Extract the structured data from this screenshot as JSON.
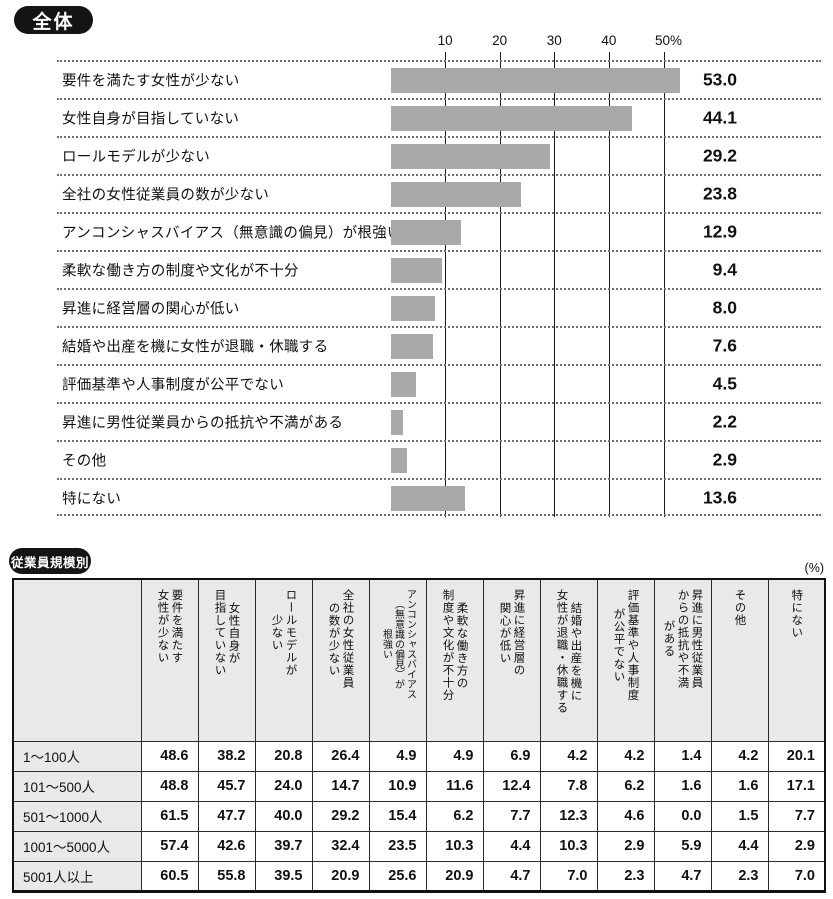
{
  "sections": {
    "overall_title": "全体",
    "by_size_title": "従業員規模別",
    "percent_note": "(%)"
  },
  "colors": {
    "bar": "#a9a9a9",
    "pill_bg": "#141414",
    "pill_text": "#ffffff",
    "table_header_bg": "#e9e9e9",
    "grid": "#1a1a1a"
  },
  "chart_data": [
    {
      "type": "bar",
      "orientation": "horizontal",
      "title": "全体",
      "unit": "%",
      "xlim": [
        0,
        55
      ],
      "x_ticks": [
        10,
        20,
        30,
        40,
        50
      ],
      "x_tick_labels": [
        "10",
        "20",
        "30",
        "40",
        "50%"
      ],
      "grid": true,
      "categories": [
        "要件を満たす女性が少ない",
        "女性自身が目指していない",
        "ロールモデルが少ない",
        "全社の女性従業員の数が少ない",
        "アンコンシャスバイアス（無意識の偏見）が根強い",
        "柔軟な働き方の制度や文化が不十分",
        "昇進に経営層の関心が低い",
        "結婚や出産を機に女性が退職・休職する",
        "評価基準や人事制度が公平でない",
        "昇進に男性従業員からの抵抗や不満がある",
        "その他",
        "特にない"
      ],
      "values": [
        53.0,
        44.1,
        29.2,
        23.8,
        12.9,
        9.4,
        8.0,
        7.6,
        4.5,
        2.2,
        2.9,
        13.6
      ]
    },
    {
      "type": "table",
      "title": "従業員規模別",
      "unit": "%",
      "columns": [
        "要件を満たす女性が少ない",
        "女性自身が目指していない",
        "ロールモデルが少ない",
        "全社の女性従業員の数が少ない",
        "アンコンシャスバイアス（無意識の偏見）が根強い",
        "柔軟な働き方の制度や文化が不十分",
        "昇進に経営層の関心が低い",
        "結婚や出産を機に女性が退職・休職する",
        "評価基準や人事制度が公平でない",
        "昇進に男性従業員からの抵抗や不満がある",
        "その他",
        "特にない"
      ],
      "column_lines": [
        [
          "要件を満たす",
          "女性が少ない"
        ],
        [
          "女性自身が",
          "目指していない"
        ],
        [
          "ロールモデルが",
          "少ない"
        ],
        [
          "全社の女性従業員",
          "の数が少ない"
        ],
        [
          "アンコンシャスバイアス",
          "（無意識の偏見）が",
          "根強い"
        ],
        [
          "柔軟な働き方の",
          "制度や文化が不十分"
        ],
        [
          "昇進に経営層の",
          "関心が低い"
        ],
        [
          "結婚や出産を機に",
          "女性が退職・休職する"
        ],
        [
          "評価基準や人事制度",
          "が公平でない"
        ],
        [
          "昇進に男性従業員",
          "からの抵抗や不満",
          "がある"
        ],
        [
          "その他"
        ],
        [
          "特にない"
        ]
      ],
      "rows": [
        {
          "label": "1〜100人",
          "values": [
            48.6,
            38.2,
            20.8,
            26.4,
            4.9,
            4.9,
            6.9,
            4.2,
            4.2,
            1.4,
            4.2,
            20.1
          ]
        },
        {
          "label": "101〜500人",
          "values": [
            48.8,
            45.7,
            24.0,
            14.7,
            10.9,
            11.6,
            12.4,
            7.8,
            6.2,
            1.6,
            1.6,
            17.1
          ]
        },
        {
          "label": "501〜1000人",
          "values": [
            61.5,
            47.7,
            40.0,
            29.2,
            15.4,
            6.2,
            7.7,
            12.3,
            4.6,
            0.0,
            1.5,
            7.7
          ]
        },
        {
          "label": "1001〜5000人",
          "values": [
            57.4,
            42.6,
            39.7,
            32.4,
            23.5,
            10.3,
            4.4,
            10.3,
            2.9,
            5.9,
            4.4,
            2.9
          ]
        },
        {
          "label": "5001人以上",
          "values": [
            60.5,
            55.8,
            39.5,
            20.9,
            25.6,
            20.9,
            4.7,
            7.0,
            2.3,
            4.7,
            2.3,
            7.0
          ]
        }
      ]
    }
  ]
}
